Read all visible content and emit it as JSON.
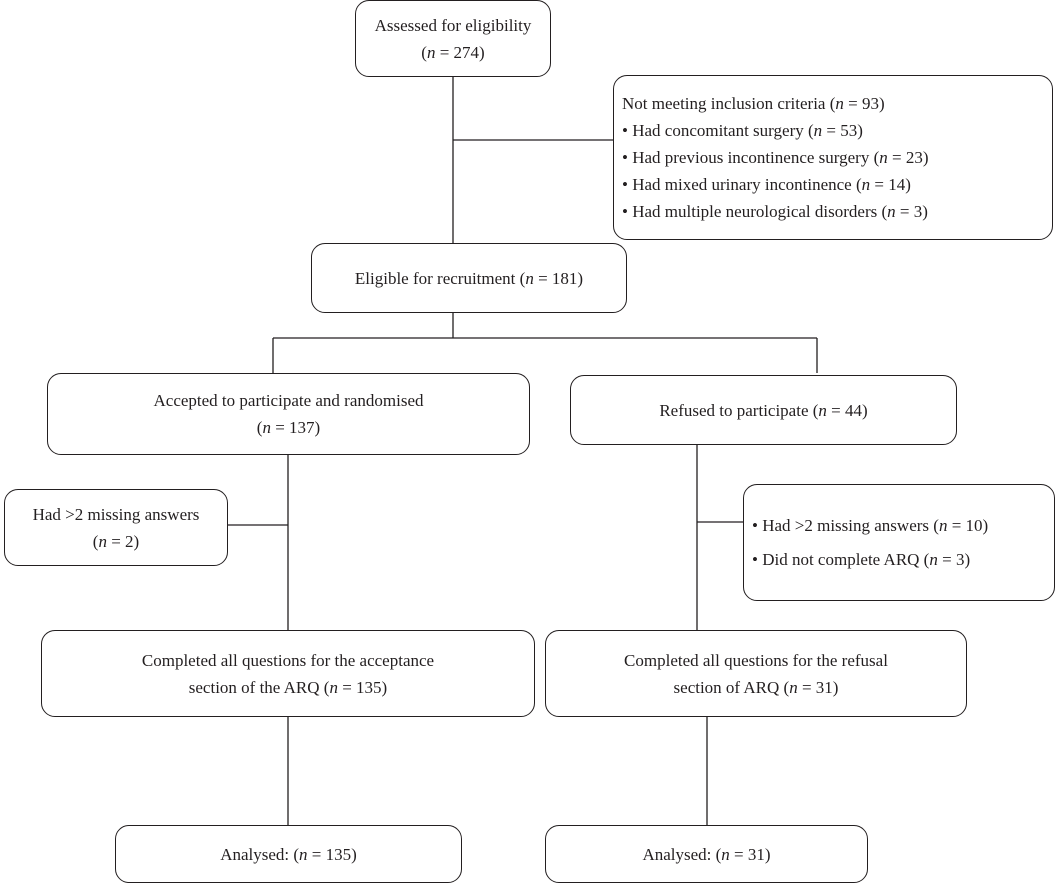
{
  "assessed": {
    "line1": "Assessed for eligibility",
    "line2": "(n = 274)"
  },
  "excluded": {
    "header": "Not meeting inclusion criteria (n = 93)",
    "items": [
      "• Had concomitant surgery (n = 53)",
      "• Had previous incontinence surgery (n = 23)",
      "• Had mixed urinary incontinence (n = 14)",
      "• Had multiple neurological disorders (n = 3)"
    ]
  },
  "eligible": {
    "line1": "Eligible for recruitment (n = 181)"
  },
  "accepted": {
    "line1": "Accepted to participate and randomised",
    "line2": "(n = 137)"
  },
  "refused": {
    "line1": "Refused to participate (n = 44)"
  },
  "missing_accept": {
    "line1": "Had >2 missing answers",
    "line2": "(n = 2)"
  },
  "missing_refuse": {
    "items": [
      "• Had >2 missing answers (n = 10)",
      "• Did not complete ARQ (n = 3)"
    ]
  },
  "completed_accept": {
    "line1": "Completed all questions for the acceptance",
    "line2": "section of the ARQ (n = 135)"
  },
  "completed_refuse": {
    "line1": "Completed all questions for the refusal",
    "line2": "section of ARQ (n = 31)"
  },
  "analysed_accept": {
    "line1": "Analysed: (n = 135)"
  },
  "analysed_refuse": {
    "line1": "Analysed: (n = 31)"
  }
}
